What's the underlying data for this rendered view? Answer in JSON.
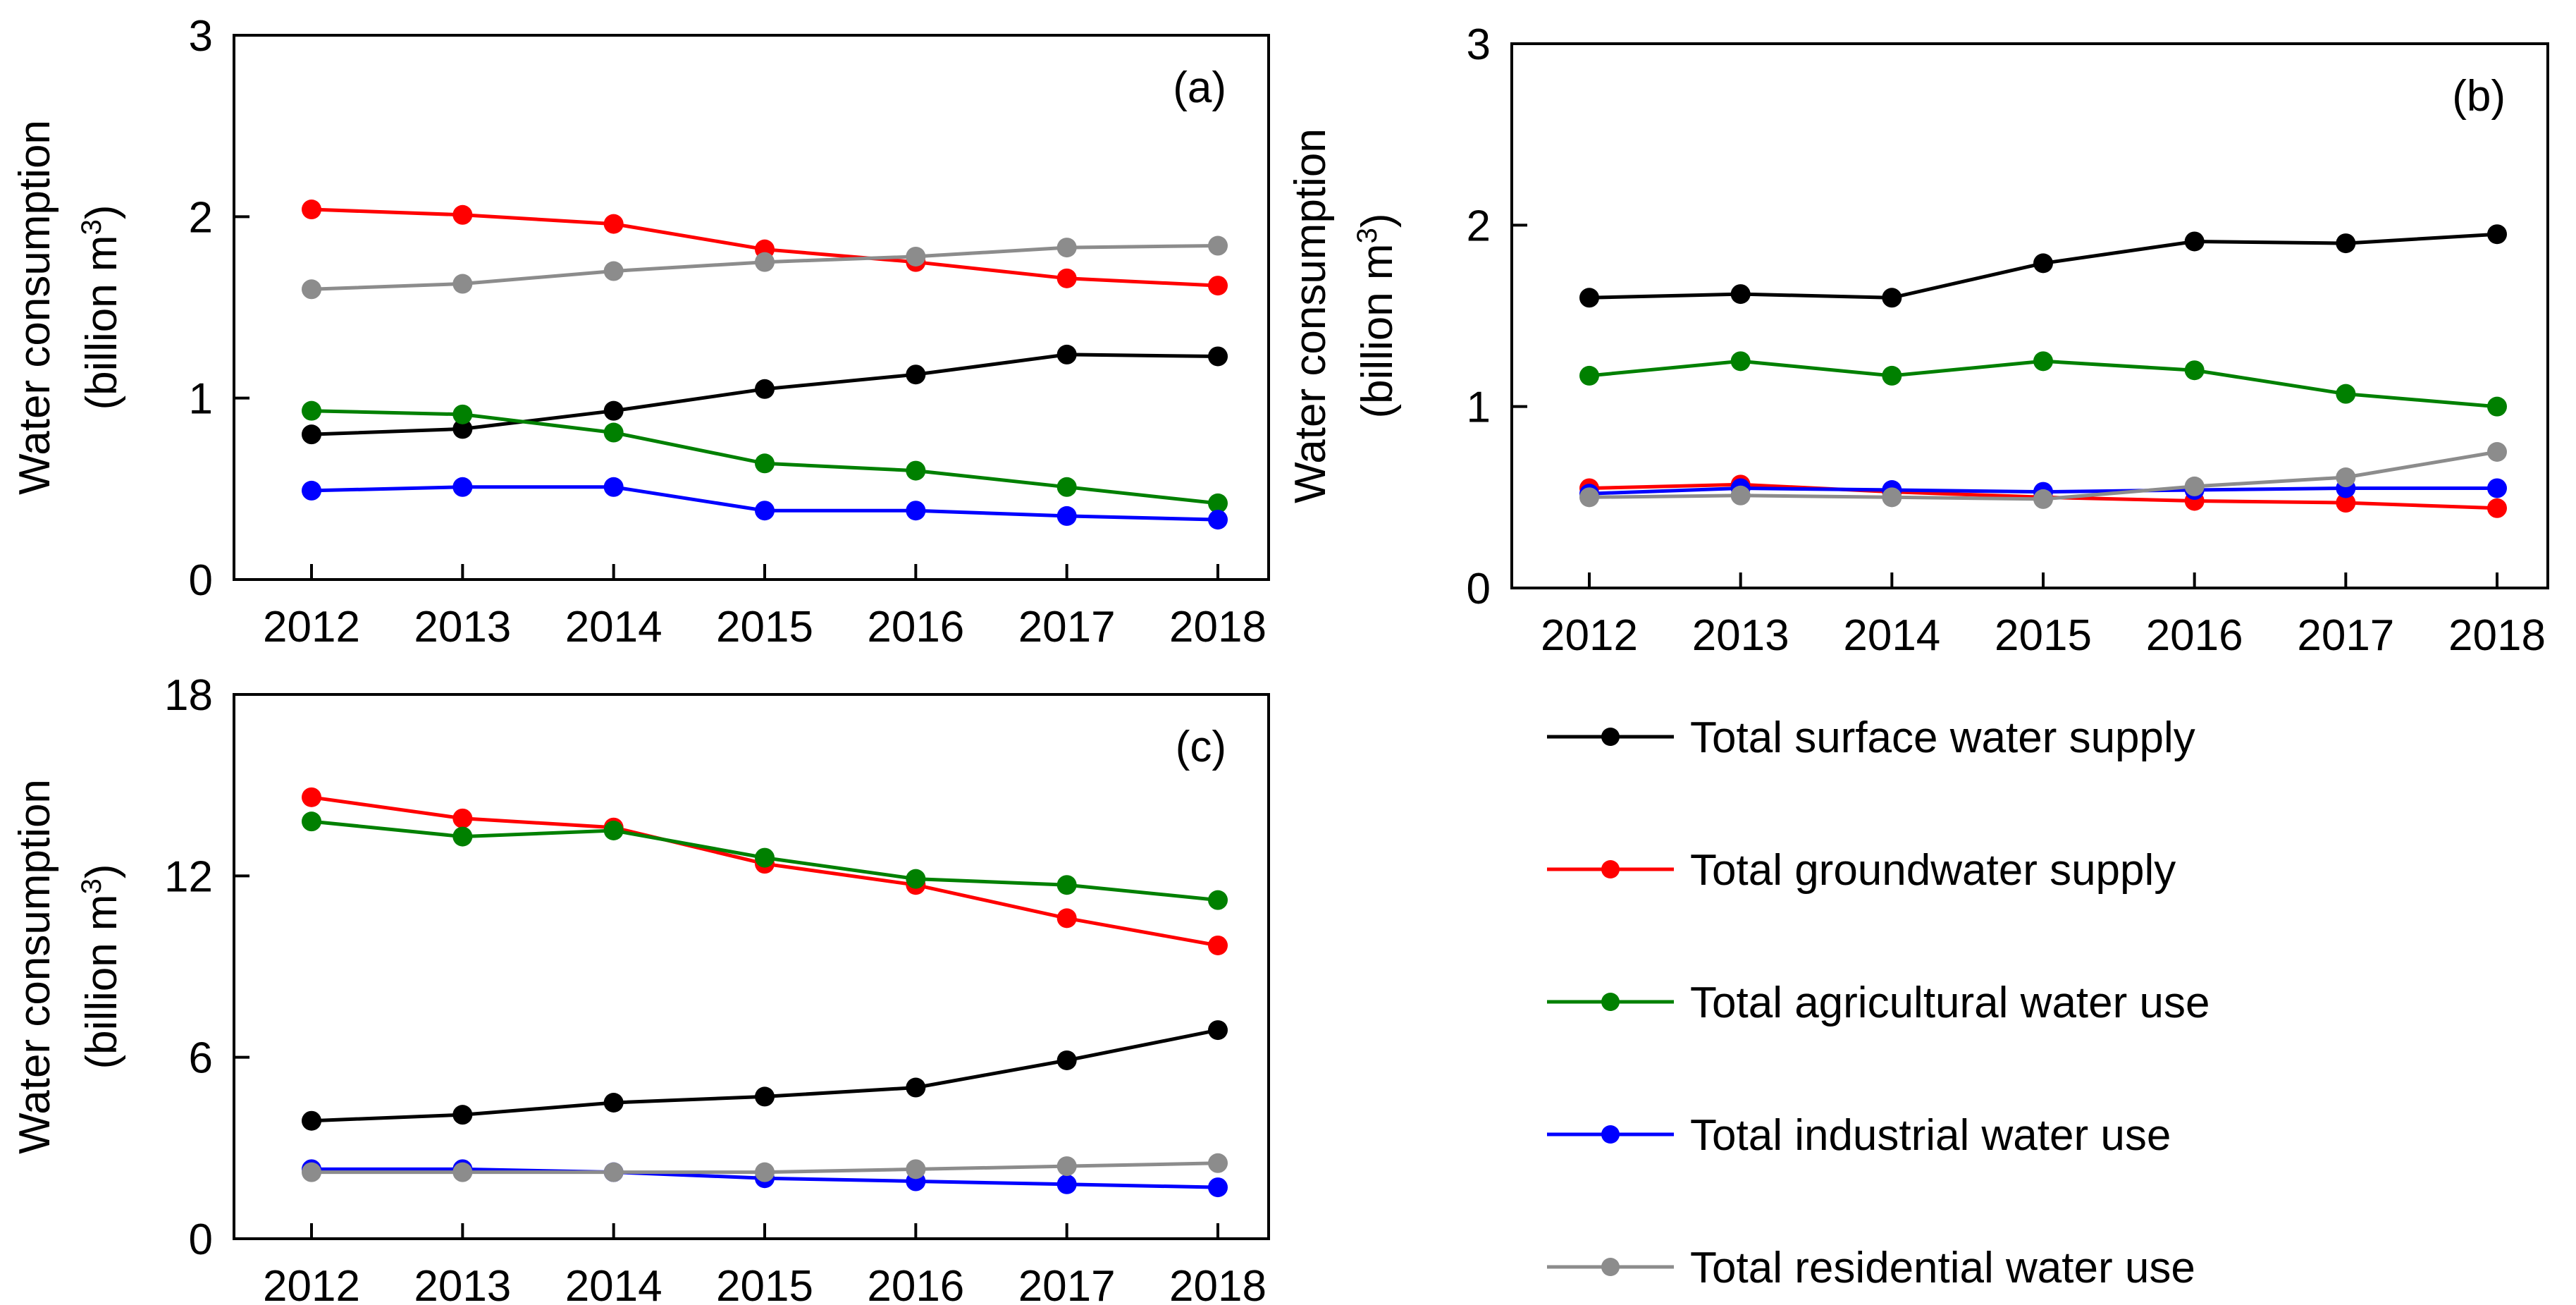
{
  "chart_data": [
    {
      "type": "line",
      "panel_label": "(a)",
      "ylabel_line1": "Water consumption",
      "ylabel_line2": "(billion m",
      "ylabel_sup": "3",
      "ylabel_close": ")",
      "ylim": [
        0,
        3
      ],
      "yticks": [
        0,
        1,
        2,
        3
      ],
      "categories": [
        "2012",
        "2013",
        "2014",
        "2015",
        "2016",
        "2017",
        "2018"
      ],
      "series": [
        {
          "name": "Total surface water supply",
          "color": "#000000",
          "values": [
            0.8,
            0.83,
            0.93,
            1.05,
            1.13,
            1.24,
            1.23
          ]
        },
        {
          "name": "Total groundwater supply",
          "color": "#ff0000",
          "values": [
            2.04,
            2.01,
            1.96,
            1.82,
            1.75,
            1.66,
            1.62
          ]
        },
        {
          "name": "Total agricultural water use",
          "color": "#008000",
          "values": [
            0.93,
            0.91,
            0.81,
            0.64,
            0.6,
            0.51,
            0.42
          ]
        },
        {
          "name": "Total industrial water use",
          "color": "#0000ff",
          "values": [
            0.49,
            0.51,
            0.51,
            0.38,
            0.38,
            0.35,
            0.33
          ]
        },
        {
          "name": "Total residential water use",
          "color": "#8c8c8c",
          "values": [
            1.6,
            1.63,
            1.7,
            1.75,
            1.78,
            1.83,
            1.84
          ]
        }
      ]
    },
    {
      "type": "line",
      "panel_label": "(b)",
      "ylabel_line1": "Water consumption",
      "ylabel_line2": "(billion m",
      "ylabel_sup": "3",
      "ylabel_close": ")",
      "ylim": [
        0,
        3
      ],
      "yticks": [
        0,
        1,
        2,
        3
      ],
      "categories": [
        "2012",
        "2013",
        "2014",
        "2015",
        "2016",
        "2017",
        "2018"
      ],
      "series": [
        {
          "name": "Total surface water supply",
          "color": "#000000",
          "values": [
            1.6,
            1.62,
            1.6,
            1.79,
            1.91,
            1.9,
            1.95
          ]
        },
        {
          "name": "Total groundwater supply",
          "color": "#ff0000",
          "values": [
            0.55,
            0.57,
            0.53,
            0.5,
            0.48,
            0.47,
            0.44
          ]
        },
        {
          "name": "Total agricultural water use",
          "color": "#008000",
          "values": [
            1.17,
            1.25,
            1.17,
            1.25,
            1.2,
            1.07,
            1.0
          ]
        },
        {
          "name": "Total industrial water use",
          "color": "#0000ff",
          "values": [
            0.52,
            0.55,
            0.54,
            0.53,
            0.54,
            0.55,
            0.55
          ]
        },
        {
          "name": "Total residential water use",
          "color": "#8c8c8c",
          "values": [
            0.5,
            0.51,
            0.5,
            0.49,
            0.56,
            0.61,
            0.75
          ]
        }
      ]
    },
    {
      "type": "line",
      "panel_label": "(c)",
      "ylabel_line1": "Water consumption",
      "ylabel_line2": "(billion m",
      "ylabel_sup": "3",
      "ylabel_close": ")",
      "ylim": [
        0,
        18
      ],
      "yticks": [
        0,
        6,
        12,
        18
      ],
      "categories": [
        "2012",
        "2013",
        "2014",
        "2015",
        "2016",
        "2017",
        "2018"
      ],
      "series": [
        {
          "name": "Total surface water supply",
          "color": "#000000",
          "values": [
            3.9,
            4.1,
            4.5,
            4.7,
            5.0,
            5.9,
            6.9
          ]
        },
        {
          "name": "Total groundwater supply",
          "color": "#ff0000",
          "values": [
            14.6,
            13.9,
            13.6,
            12.4,
            11.7,
            10.6,
            9.7
          ]
        },
        {
          "name": "Total agricultural water use",
          "color": "#008000",
          "values": [
            13.8,
            13.3,
            13.5,
            12.6,
            11.9,
            11.7,
            11.2
          ]
        },
        {
          "name": "Total industrial water use",
          "color": "#0000ff",
          "values": [
            2.3,
            2.3,
            2.2,
            2.0,
            1.9,
            1.8,
            1.7
          ]
        },
        {
          "name": "Total residential water use",
          "color": "#8c8c8c",
          "values": [
            2.2,
            2.2,
            2.2,
            2.2,
            2.3,
            2.4,
            2.5
          ]
        }
      ]
    }
  ],
  "legend": [
    {
      "label": "Total surface water supply",
      "color": "#000000"
    },
    {
      "label": "Total groundwater supply",
      "color": "#ff0000"
    },
    {
      "label": "Total agricultural water use",
      "color": "#008000"
    },
    {
      "label": "Total industrial water use",
      "color": "#0000ff"
    },
    {
      "label": "Total residential water use",
      "color": "#8c8c8c"
    }
  ]
}
